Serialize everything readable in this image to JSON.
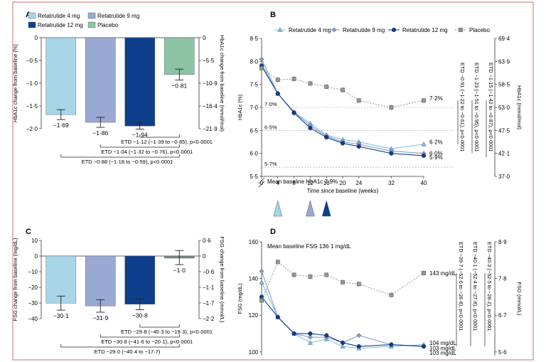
{
  "colors": {
    "r4": "#a8d6e8",
    "r9": "#9aa8d4",
    "r12": "#0d3f8c",
    "placebo": "#8cc4a4",
    "r4_line": "#7ec3e0",
    "r9_line": "#8a9acc",
    "r12_line": "#0d3f8c",
    "placebo_line": "#7a7a7a",
    "frame": "#c87070",
    "axis": "#333333"
  },
  "chart_data": [
    {
      "panel": "A",
      "type": "bar",
      "legend": [
        "Retatrutide 4 mg",
        "Retatrutide 9 mg",
        "Retatrutide 12 mg",
        "Placebo"
      ],
      "categories": [
        "Retatrutide 4 mg",
        "Retatrutide 9 mg",
        "Retatrutide 12 mg",
        "Placebo"
      ],
      "values": [
        -1.69,
        -1.86,
        -1.94,
        -0.81
      ],
      "errors": [
        0.11,
        0.11,
        0.07,
        0.12
      ],
      "value_labels": [
        "−1·69",
        "−1·86",
        "−1·94",
        "−0·81"
      ],
      "ylabel_left": "HbA1c change from baseline (%)",
      "ylabel_right": "HbA1c change from baseline (mmol/mol)",
      "ylim": [
        -2.0,
        0
      ],
      "yticks": [
        "0",
        "−0·5",
        "−1·0",
        "−1·5",
        "−2·0"
      ],
      "yticks_right": [
        "0",
        "−5·5",
        "−10·9",
        "−16·4",
        "−21·9"
      ],
      "brackets": [
        "ETD −1·12 (−1·39 to −0·85), p<0·0001",
        "ETD −1·04 (−1·32 to −0·76), p<0·0001",
        "ETD −0·88 (−1·18 to −0·59), p<0·0001"
      ]
    },
    {
      "panel": "B",
      "type": "line",
      "legend": [
        "Retatrutide 4 mg",
        "Retatrutide 9 mg",
        "Retatrutide 12 mg",
        "Placebo"
      ],
      "x": [
        0,
        4,
        8,
        12,
        16,
        20,
        24,
        32,
        40
      ],
      "series": [
        {
          "name": "Retatrutide 4 mg",
          "values": [
            7.95,
            7.3,
            6.9,
            6.65,
            6.4,
            6.3,
            6.25,
            6.1,
            6.2
          ]
        },
        {
          "name": "Retatrutide 9 mg",
          "values": [
            8.05,
            7.3,
            6.9,
            6.6,
            6.38,
            6.25,
            6.2,
            6.05,
            6.0
          ]
        },
        {
          "name": "Retatrutide 12 mg",
          "values": [
            7.9,
            7.3,
            6.88,
            6.55,
            6.35,
            6.22,
            6.15,
            6.0,
            5.95
          ]
        },
        {
          "name": "Placebo",
          "values": [
            7.85,
            7.6,
            7.62,
            7.52,
            7.45,
            7.38,
            7.15,
            7.0,
            7.15
          ]
        }
      ],
      "end_labels": [
        "7·2%",
        "6·2%",
        "6·0%",
        "5·9%"
      ],
      "ref_lines": [
        "7·0%",
        "6·5%",
        "5·7%"
      ],
      "baseline_note": "Mean baseline HbA1c 7·9%",
      "xlabel": "Time since baseline (weeks)",
      "ylabel_left": "HbA1c (%)",
      "ylabel_right": "HbA1c (mmol/mol)",
      "xticks": [
        "0",
        "4",
        "8",
        "12",
        "16",
        "20",
        "24",
        "32",
        "40"
      ],
      "yticks": [
        "5·5",
        "6·0",
        "6·5",
        "7·0",
        "7·5",
        "8·0",
        "8·5"
      ],
      "yticks_right": [
        "37·0",
        "42·1",
        "47·5",
        "53·0",
        "58·5",
        "63·9",
        "69·4"
      ],
      "ylim": [
        5.5,
        8.5
      ],
      "etd_labels": [
        "ETD −0·91 (−1·22 to −0·61), p<0·0001",
        "ETD −1·23 (−1·51 to −0·95), p<0·0001",
        "ETD −1·15 (−1·42 to −0·87), p<0·0001"
      ],
      "dose_markers_weeks": [
        4,
        12,
        16
      ]
    },
    {
      "panel": "C",
      "type": "bar",
      "categories": [
        "Retatrutide 4 mg",
        "Retatrutide 9 mg",
        "Retatrutide 12 mg",
        "Placebo"
      ],
      "values": [
        -30.1,
        -31.9,
        -30.8,
        -1.0
      ],
      "errors": [
        4.5,
        4.0,
        3.5,
        4.5
      ],
      "value_labels": [
        "−30·1",
        "−31·9",
        "−30·8",
        "−1·0"
      ],
      "ylabel_left": "FSG change from baseline (mg/dL)",
      "ylabel_right": "FSG change from baseline (mmol/L)",
      "ylim": [
        -40,
        10
      ],
      "yticks": [
        "10",
        "0",
        "−10",
        "−20",
        "−30",
        "−40"
      ],
      "yticks_right": [
        "0·6",
        "0",
        "−0·6",
        "−1·1",
        "−1·7",
        "−2·2"
      ],
      "brackets": [
        "ETD −29·8 (−40·3 to −19·3), p<0·0001",
        "ETD −30·8 (−41·6 to −20·1), p<0·0001",
        "ETD −29·0 (−40·4 to −17·7)"
      ]
    },
    {
      "panel": "D",
      "type": "line",
      "x": [
        0,
        4,
        8,
        12,
        16,
        20,
        24,
        32,
        40
      ],
      "series": [
        {
          "name": "Retatrutide 4 mg",
          "values": [
            138,
            119,
            110,
            105,
            107,
            103,
            102,
            103,
            104
          ]
        },
        {
          "name": "Retatrutide 9 mg",
          "values": [
            144,
            119,
            110,
            108,
            108,
            105,
            109,
            104,
            103
          ]
        },
        {
          "name": "Retatrutide 12 mg",
          "values": [
            130,
            119,
            110,
            110,
            109,
            105,
            103,
            104,
            103
          ]
        },
        {
          "name": "Placebo",
          "values": [
            128,
            149,
            142,
            141,
            142,
            138,
            137,
            131,
            143
          ]
        }
      ],
      "end_labels": [
        "143 mg/dL",
        "104 mg/dL",
        "103 mg/dL",
        "103 mg/dL"
      ],
      "baseline_note": "Mean baseline FSG 136·1 mg/dL",
      "ylabel_left": "FSG (mg/dL)",
      "ylabel_right": "FSG (mmol/L)",
      "yticks": [
        "100",
        "120",
        "140",
        "160"
      ],
      "yticks_right": [
        "5·6",
        "6·7",
        "7·8",
        "8·9"
      ],
      "ylim": [
        98,
        160
      ],
      "etd_labels": [
        "ETD −39·7 (−52·6 to −26·8), p<0·0001",
        "ETD −40·1 (−52·4 to −27·8), p<0·0001",
        "ETD −40·3 (−52·5 to −28·2), p<0·0001"
      ]
    }
  ],
  "panel_letters": [
    "A",
    "B",
    "C",
    "D"
  ]
}
